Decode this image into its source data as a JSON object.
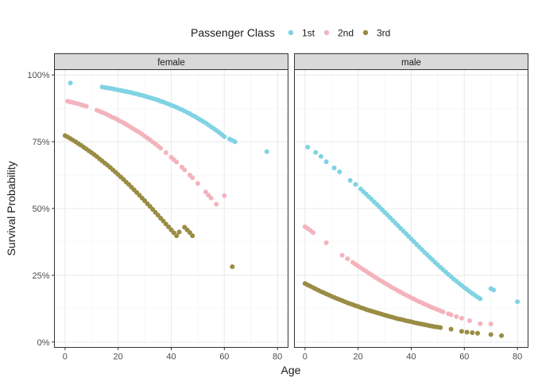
{
  "chart_data": {
    "type": "scatter",
    "xlabel": "Age",
    "ylabel": "Survival Probability",
    "xlim": [
      -4,
      84
    ],
    "ylim": [
      -0.02,
      1.02
    ],
    "x_ticks": [
      0,
      20,
      40,
      60,
      80
    ],
    "y_ticks": [
      0,
      0.25,
      0.5,
      0.75,
      1
    ],
    "y_tick_labels": [
      "0%",
      "25%",
      "50%",
      "75%",
      "100%"
    ],
    "grid": true,
    "legend": {
      "title": "Passenger Class",
      "position": "top",
      "entries": [
        "1st",
        "2nd",
        "3rd"
      ]
    },
    "colors": {
      "1st": "#7fd3e3",
      "2nd": "#f3b3bd",
      "3rd": "#9a8c45"
    },
    "panels": [
      {
        "label": "female",
        "series": [
          {
            "name": "1st",
            "x": [
              2,
              14,
              15,
              16,
              17,
              18,
              19,
              20,
              21,
              22,
              23,
              24,
              25,
              26,
              27,
              28,
              29,
              30,
              31,
              32,
              33,
              34,
              35,
              36,
              37,
              38,
              39,
              40,
              41,
              42,
              43,
              44,
              45,
              46,
              47,
              48,
              49,
              50,
              51,
              52,
              53,
              54,
              55,
              56,
              57,
              58,
              59,
              60,
              62,
              63,
              64,
              76
            ],
            "y": [
              0.97,
              0.955,
              0.953,
              0.952,
              0.95,
              0.948,
              0.946,
              0.944,
              0.942,
              0.94,
              0.938,
              0.936,
              0.934,
              0.931,
              0.929,
              0.926,
              0.924,
              0.921,
              0.918,
              0.915,
              0.912,
              0.909,
              0.906,
              0.902,
              0.899,
              0.895,
              0.891,
              0.887,
              0.883,
              0.879,
              0.874,
              0.87,
              0.865,
              0.86,
              0.855,
              0.849,
              0.844,
              0.838,
              0.832,
              0.826,
              0.82,
              0.813,
              0.806,
              0.799,
              0.792,
              0.785,
              0.777,
              0.769,
              0.76,
              0.755,
              0.75,
              0.713
            ]
          },
          {
            "name": "2nd",
            "x": [
              1,
              2,
              3,
              4,
              5,
              6,
              7,
              8,
              12,
              13,
              14,
              15,
              16,
              17,
              18,
              19,
              20,
              21,
              22,
              23,
              24,
              25,
              26,
              27,
              28,
              29,
              30,
              31,
              32,
              33,
              34,
              35,
              36,
              38,
              40,
              41,
              42,
              44,
              45,
              47,
              48,
              50,
              53,
              54,
              55,
              57,
              60
            ],
            "y": [
              0.902,
              0.899,
              0.897,
              0.894,
              0.892,
              0.889,
              0.886,
              0.883,
              0.868,
              0.864,
              0.86,
              0.856,
              0.851,
              0.846,
              0.841,
              0.837,
              0.831,
              0.826,
              0.821,
              0.815,
              0.809,
              0.803,
              0.797,
              0.791,
              0.785,
              0.778,
              0.771,
              0.764,
              0.757,
              0.749,
              0.742,
              0.734,
              0.726,
              0.709,
              0.692,
              0.683,
              0.674,
              0.655,
              0.645,
              0.625,
              0.615,
              0.594,
              0.562,
              0.55,
              0.539,
              0.516,
              0.548
            ]
          },
          {
            "name": "3rd",
            "x": [
              0,
              1,
              2,
              3,
              4,
              5,
              6,
              7,
              8,
              9,
              10,
              11,
              12,
              13,
              14,
              15,
              16,
              17,
              18,
              19,
              20,
              21,
              22,
              23,
              24,
              25,
              26,
              27,
              28,
              29,
              30,
              31,
              32,
              33,
              34,
              35,
              36,
              37,
              38,
              39,
              40,
              41,
              42,
              43,
              45,
              46,
              47,
              48,
              63
            ],
            "y": [
              0.773,
              0.768,
              0.762,
              0.756,
              0.75,
              0.743,
              0.737,
              0.73,
              0.723,
              0.716,
              0.709,
              0.702,
              0.694,
              0.686,
              0.678,
              0.67,
              0.662,
              0.654,
              0.645,
              0.636,
              0.627,
              0.618,
              0.609,
              0.599,
              0.59,
              0.58,
              0.57,
              0.56,
              0.55,
              0.539,
              0.529,
              0.518,
              0.508,
              0.497,
              0.486,
              0.475,
              0.464,
              0.453,
              0.442,
              0.431,
              0.42,
              0.409,
              0.398,
              0.412,
              0.43,
              0.42,
              0.41,
              0.398,
              0.282
            ]
          }
        ]
      },
      {
        "label": "male",
        "series": [
          {
            "name": "1st",
            "x": [
              1,
              4,
              6,
              8,
              11,
              13,
              17,
              19,
              21,
              22,
              23,
              24,
              25,
              26,
              27,
              28,
              29,
              30,
              31,
              32,
              33,
              34,
              35,
              36,
              37,
              38,
              39,
              40,
              41,
              42,
              43,
              44,
              45,
              46,
              47,
              48,
              49,
              50,
              51,
              52,
              53,
              54,
              55,
              56,
              57,
              58,
              59,
              60,
              61,
              62,
              63,
              64,
              65,
              66,
              70,
              71,
              80
            ],
            "y": [
              0.73,
              0.71,
              0.695,
              0.675,
              0.652,
              0.637,
              0.605,
              0.59,
              0.573,
              0.563,
              0.554,
              0.544,
              0.535,
              0.525,
              0.516,
              0.506,
              0.496,
              0.486,
              0.476,
              0.466,
              0.456,
              0.446,
              0.436,
              0.426,
              0.416,
              0.406,
              0.396,
              0.386,
              0.376,
              0.366,
              0.356,
              0.346,
              0.336,
              0.327,
              0.317,
              0.308,
              0.298,
              0.289,
              0.28,
              0.271,
              0.262,
              0.253,
              0.245,
              0.236,
              0.228,
              0.22,
              0.212,
              0.204,
              0.197,
              0.189,
              0.182,
              0.175,
              0.168,
              0.162,
              0.2,
              0.195,
              0.151
            ]
          },
          {
            "name": "2nd",
            "x": [
              0,
              1,
              2,
              3,
              8,
              14,
              16,
              18,
              19,
              20,
              21,
              22,
              23,
              24,
              25,
              26,
              27,
              28,
              29,
              30,
              31,
              32,
              33,
              34,
              35,
              36,
              37,
              38,
              39,
              40,
              41,
              42,
              43,
              44,
              45,
              46,
              47,
              48,
              49,
              50,
              51,
              52,
              54,
              55,
              57,
              59,
              62,
              66,
              70
            ],
            "y": [
              0.432,
              0.425,
              0.418,
              0.41,
              0.372,
              0.325,
              0.312,
              0.298,
              0.291,
              0.284,
              0.278,
              0.271,
              0.265,
              0.258,
              0.252,
              0.245,
              0.239,
              0.233,
              0.227,
              0.221,
              0.215,
              0.209,
              0.203,
              0.198,
              0.192,
              0.187,
              0.181,
              0.176,
              0.171,
              0.166,
              0.161,
              0.156,
              0.151,
              0.147,
              0.142,
              0.138,
              0.133,
              0.129,
              0.125,
              0.121,
              0.117,
              0.113,
              0.106,
              0.102,
              0.095,
              0.089,
              0.08,
              0.069,
              0.068
            ]
          },
          {
            "name": "3rd",
            "x": [
              0,
              1,
              2,
              3,
              4,
              5,
              6,
              7,
              8,
              9,
              10,
              11,
              12,
              13,
              14,
              15,
              16,
              17,
              18,
              19,
              20,
              21,
              22,
              23,
              24,
              25,
              26,
              27,
              28,
              29,
              30,
              31,
              32,
              33,
              34,
              35,
              36,
              37,
              38,
              39,
              40,
              41,
              42,
              43,
              44,
              45,
              46,
              47,
              48,
              49,
              50,
              51,
              55,
              59,
              61,
              63,
              65,
              70,
              74
            ],
            "y": [
              0.219,
              0.214,
              0.209,
              0.204,
              0.199,
              0.194,
              0.189,
              0.185,
              0.18,
              0.176,
              0.171,
              0.167,
              0.163,
              0.159,
              0.155,
              0.151,
              0.147,
              0.143,
              0.14,
              0.136,
              0.133,
              0.129,
              0.126,
              0.122,
              0.119,
              0.116,
              0.113,
              0.11,
              0.107,
              0.104,
              0.101,
              0.098,
              0.095,
              0.093,
              0.09,
              0.087,
              0.085,
              0.083,
              0.08,
              0.078,
              0.076,
              0.073,
              0.071,
              0.069,
              0.067,
              0.065,
              0.063,
              0.061,
              0.059,
              0.057,
              0.056,
              0.054,
              0.048,
              0.04,
              0.037,
              0.035,
              0.033,
              0.028,
              0.024
            ]
          }
        ]
      }
    ]
  }
}
